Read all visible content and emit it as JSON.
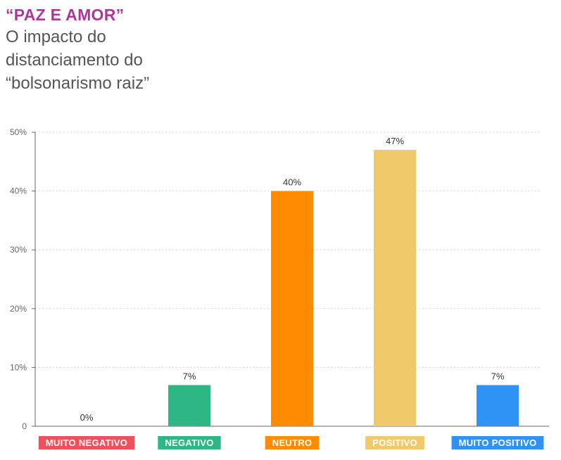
{
  "header": {
    "kicker": "“PAZ E AMOR”",
    "subtitle": "O impacto do distanciamento do “bolsonarismo raiz”"
  },
  "chart_data": {
    "type": "bar",
    "title": "“PAZ E AMOR”",
    "subtitle": "O impacto do distanciamento do “bolsonarismo raiz”",
    "categories": [
      "MUITO NEGATIVO",
      "NEGATIVO",
      "NEUTRO",
      "POSITIVO",
      "MUITO POSITIVO"
    ],
    "values": [
      0,
      7,
      40,
      47,
      7
    ],
    "value_labels": [
      "0%",
      "7%",
      "40%",
      "47%",
      "7%"
    ],
    "colors": [
      "#f0505a",
      "#2db784",
      "#ff8c00",
      "#f0c96a",
      "#2f93f5"
    ],
    "ylim": [
      0,
      50
    ],
    "yticks": [
      0,
      10,
      20,
      30,
      40,
      50
    ],
    "ytick_labels": [
      "0",
      "10%",
      "20%",
      "30%",
      "40%",
      "50%"
    ],
    "xlabel": "",
    "ylabel": "",
    "grid": true
  }
}
